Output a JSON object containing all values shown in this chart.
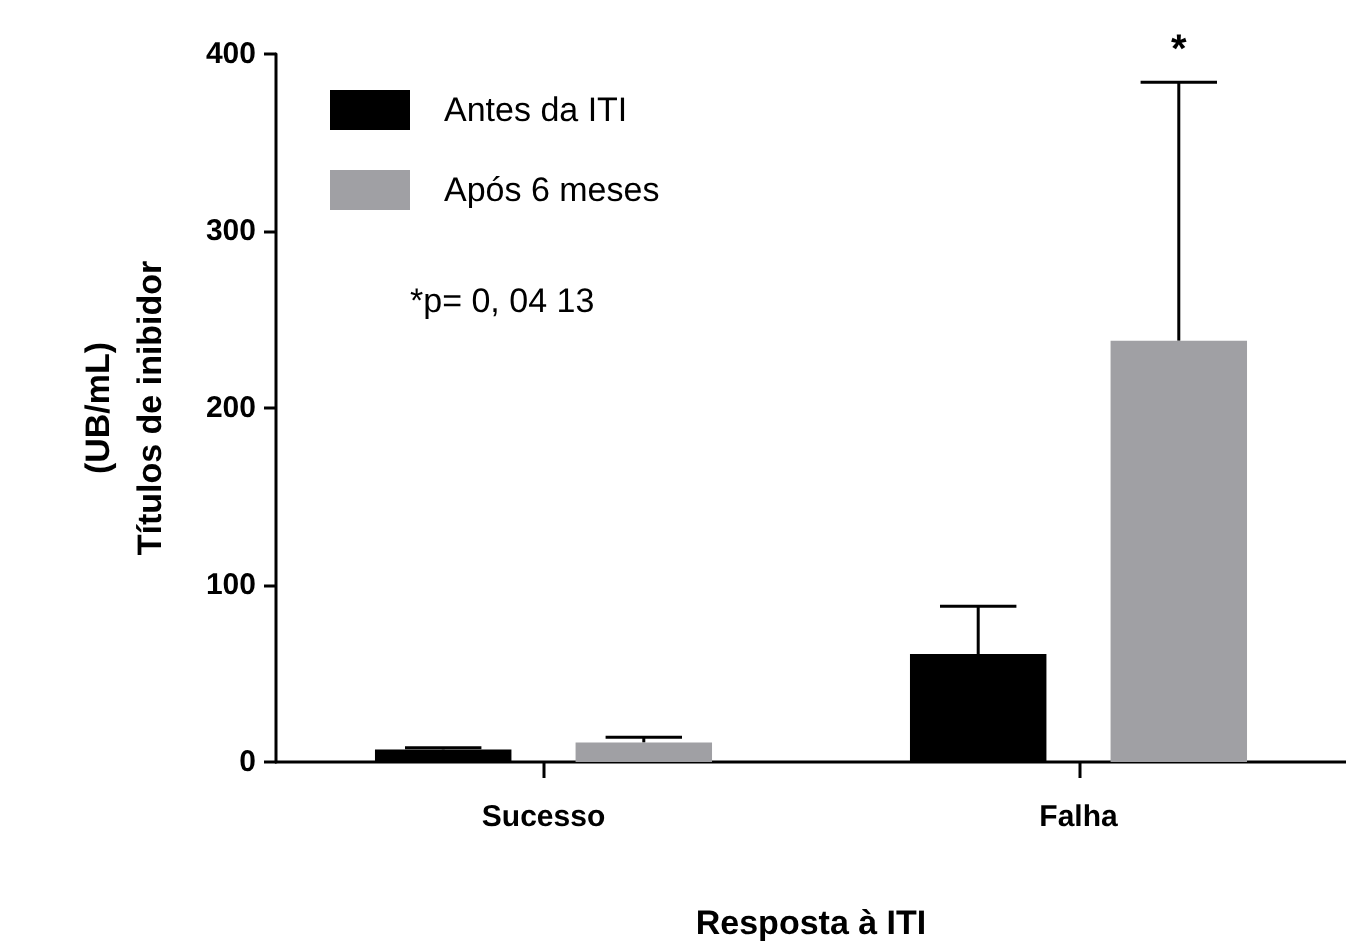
{
  "chart_data": {
    "type": "bar",
    "xlabel": "Resposta à ITI",
    "ylabel": "(UB/mL)\nTítulos de inibidor",
    "categories": [
      "Sucesso",
      "Falha"
    ],
    "series": [
      {
        "name": "Antes da ITI",
        "color": "#000000",
        "values": [
          7,
          61
        ],
        "errors": [
          [
            7,
            8
          ],
          [
            61,
            88
          ]
        ]
      },
      {
        "name": "Após 6 meses",
        "color": "#a0a0a4",
        "values": [
          11,
          238
        ],
        "errors": [
          [
            11,
            14
          ],
          [
            238,
            384
          ]
        ]
      }
    ],
    "ylim": [
      0,
      400
    ],
    "yticks": [
      0,
      100,
      200,
      300,
      400
    ],
    "grid": false,
    "legend": "top left",
    "annotations": [
      "*p= 0, 04 13",
      "*"
    ]
  }
}
